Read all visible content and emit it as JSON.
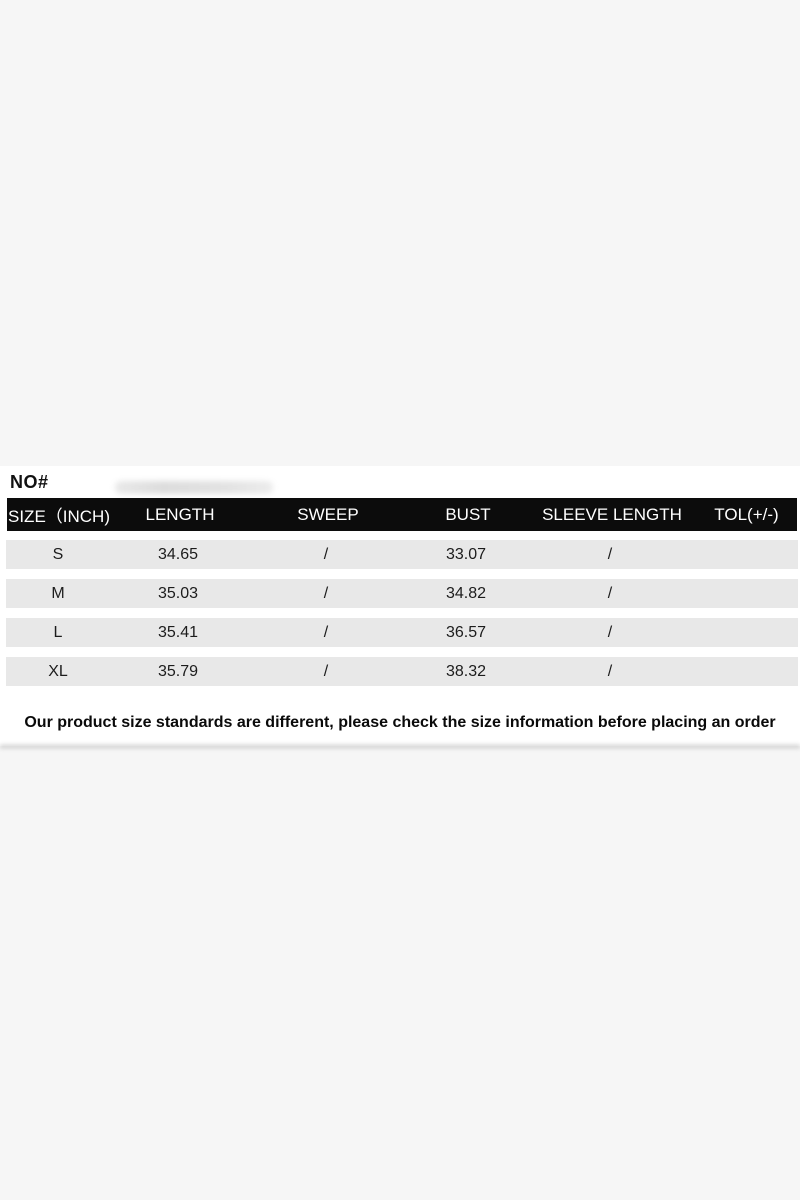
{
  "page": {
    "background_color": "#f6f6f6",
    "panel_color": "#ffffff"
  },
  "size_chart": {
    "no_label": "NO#",
    "header": {
      "background_color": "#0c0c0c",
      "text_color": "#ffffff"
    },
    "columns": [
      "SIZE（INCH)",
      "LENGTH",
      "SWEEP",
      "BUST",
      "SLEEVE LENGTH",
      "TOL(+/-)"
    ],
    "row_background_color": "#e8e8e8",
    "rows": [
      {
        "size": "S",
        "length": "34.65",
        "sweep": "/",
        "bust": "33.07",
        "sleeve_length": "/",
        "tol": ""
      },
      {
        "size": "M",
        "length": "35.03",
        "sweep": "/",
        "bust": "34.82",
        "sleeve_length": "/",
        "tol": ""
      },
      {
        "size": "L",
        "length": "35.41",
        "sweep": "/",
        "bust": "36.57",
        "sleeve_length": "/",
        "tol": ""
      },
      {
        "size": "XL",
        "length": "35.79",
        "sweep": "/",
        "bust": "38.32",
        "sleeve_length": "/",
        "tol": ""
      }
    ],
    "note": "Our product size standards are different, please check the size information before placing an order"
  }
}
